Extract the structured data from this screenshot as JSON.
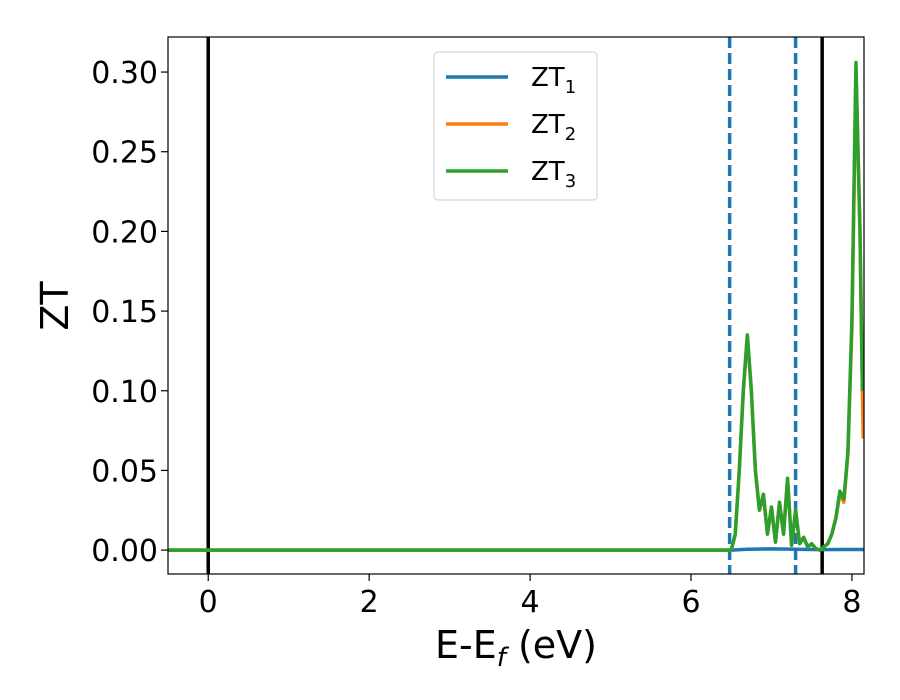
{
  "chart_data": {
    "type": "line",
    "xlabel": "E-E",
    "xlabel_sub": "f",
    "xlabel_unit": " (eV)",
    "ylabel": "ZT",
    "xlim": [
      -0.5,
      8.15
    ],
    "ylim": [
      -0.015,
      0.322
    ],
    "xticks": [
      0,
      2,
      4,
      6,
      8
    ],
    "yticks": [
      0.0,
      0.05,
      0.1,
      0.15,
      0.2,
      0.25,
      0.3
    ],
    "ytick_labels": [
      "0.00",
      "0.05",
      "0.10",
      "0.15",
      "0.20",
      "0.25",
      "0.30"
    ],
    "xtick_labels": [
      "0",
      "2",
      "4",
      "6",
      "8"
    ],
    "grid": false,
    "legend_position": "top-center",
    "vlines_solid": [
      0.0,
      7.63
    ],
    "vlines_dashed": [
      6.48,
      7.3
    ],
    "series": [
      {
        "name": "ZT",
        "sub": "1",
        "color": "#1f77b4",
        "x": [
          -0.5,
          6.5,
          6.7,
          7.0,
          7.3,
          7.6,
          7.9,
          8.15
        ],
        "y": [
          0.0,
          0.0,
          0.0005,
          0.0008,
          0.0005,
          0.0003,
          0.0004,
          0.0004
        ]
      },
      {
        "name": "ZT",
        "sub": "2",
        "color": "#ff7f0e",
        "x": [
          -0.5,
          6.45,
          6.5,
          6.55,
          6.6,
          6.65,
          6.7,
          6.75,
          6.8,
          6.85,
          6.9,
          6.95,
          7.0,
          7.05,
          7.1,
          7.15,
          7.2,
          7.25,
          7.3,
          7.35,
          7.4,
          7.45,
          7.5,
          7.55,
          7.6,
          7.65,
          7.7,
          7.75,
          7.8,
          7.85,
          7.9,
          7.95,
          8.0,
          8.05,
          8.1,
          8.13,
          8.14
        ],
        "y": [
          0.0,
          0.0,
          0.0,
          0.01,
          0.05,
          0.1,
          0.135,
          0.1,
          0.05,
          0.025,
          0.035,
          0.01,
          0.027,
          0.005,
          0.03,
          0.01,
          0.045,
          0.003,
          0.025,
          0.004,
          0.008,
          0.002,
          0.004,
          0.001,
          0.0,
          0.002,
          0.004,
          0.01,
          0.02,
          0.035,
          0.03,
          0.06,
          0.14,
          0.3,
          0.2,
          0.1,
          0.07
        ]
      },
      {
        "name": "ZT",
        "sub": "3",
        "color": "#2ca02c",
        "x": [
          -0.5,
          6.45,
          6.5,
          6.55,
          6.6,
          6.65,
          6.7,
          6.75,
          6.8,
          6.85,
          6.9,
          6.95,
          7.0,
          7.05,
          7.1,
          7.15,
          7.2,
          7.25,
          7.3,
          7.35,
          7.4,
          7.45,
          7.5,
          7.55,
          7.6,
          7.65,
          7.7,
          7.75,
          7.8,
          7.85,
          7.9,
          7.95,
          8.0,
          8.05,
          8.1,
          8.13
        ],
        "y": [
          0.0,
          0.0,
          0.0,
          0.01,
          0.05,
          0.1,
          0.135,
          0.1,
          0.05,
          0.025,
          0.035,
          0.01,
          0.027,
          0.005,
          0.03,
          0.01,
          0.045,
          0.003,
          0.025,
          0.004,
          0.008,
          0.002,
          0.004,
          0.001,
          0.0,
          0.002,
          0.004,
          0.01,
          0.02,
          0.037,
          0.032,
          0.062,
          0.145,
          0.306,
          0.2,
          0.1
        ]
      }
    ]
  }
}
